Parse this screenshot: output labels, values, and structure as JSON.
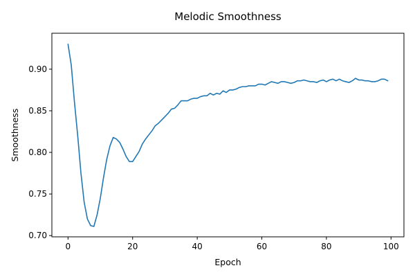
{
  "chart_data": {
    "type": "line",
    "title": "Melodic Smoothness",
    "xlabel": "Epoch",
    "ylabel": "Smoothness",
    "xlim": [
      -5,
      104
    ],
    "ylim": [
      0.6985,
      0.9432
    ],
    "xticks": [
      0,
      20,
      40,
      60,
      80,
      100
    ],
    "xtick_labels": [
      "0",
      "20",
      "40",
      "60",
      "80",
      "100"
    ],
    "yticks": [
      0.7,
      0.75,
      0.8,
      0.85,
      0.9
    ],
    "ytick_labels": [
      "0.70",
      "0.75",
      "0.80",
      "0.85",
      "0.90"
    ],
    "grid": false,
    "legend": false,
    "series": [
      {
        "color": "#1f77b4",
        "x": [
          0,
          1,
          2,
          3,
          4,
          5,
          6,
          7,
          8,
          9,
          10,
          11,
          12,
          13,
          14,
          15,
          16,
          17,
          18,
          19,
          20,
          21,
          22,
          23,
          24,
          25,
          26,
          27,
          28,
          29,
          30,
          31,
          32,
          33,
          34,
          35,
          36,
          37,
          38,
          39,
          40,
          41,
          42,
          43,
          44,
          45,
          46,
          47,
          48,
          49,
          50,
          51,
          52,
          53,
          54,
          55,
          56,
          57,
          58,
          59,
          60,
          61,
          62,
          63,
          64,
          65,
          66,
          67,
          68,
          69,
          70,
          71,
          72,
          73,
          74,
          75,
          76,
          77,
          78,
          79,
          80,
          81,
          82,
          83,
          84,
          85,
          86,
          87,
          88,
          89,
          90,
          91,
          92,
          93,
          94,
          95,
          96,
          97,
          98,
          99
        ],
        "values": [
          0.93,
          0.905,
          0.86,
          0.82,
          0.775,
          0.74,
          0.72,
          0.712,
          0.711,
          0.725,
          0.745,
          0.77,
          0.792,
          0.808,
          0.818,
          0.816,
          0.812,
          0.804,
          0.795,
          0.789,
          0.789,
          0.795,
          0.801,
          0.81,
          0.816,
          0.821,
          0.826,
          0.832,
          0.835,
          0.839,
          0.843,
          0.847,
          0.852,
          0.853,
          0.857,
          0.862,
          0.862,
          0.862,
          0.864,
          0.865,
          0.865,
          0.867,
          0.868,
          0.868,
          0.871,
          0.869,
          0.871,
          0.87,
          0.874,
          0.872,
          0.875,
          0.875,
          0.876,
          0.878,
          0.879,
          0.879,
          0.88,
          0.88,
          0.88,
          0.882,
          0.882,
          0.881,
          0.883,
          0.885,
          0.884,
          0.883,
          0.885,
          0.885,
          0.884,
          0.883,
          0.884,
          0.886,
          0.886,
          0.887,
          0.886,
          0.885,
          0.885,
          0.884,
          0.886,
          0.887,
          0.885,
          0.887,
          0.888,
          0.886,
          0.888,
          0.886,
          0.885,
          0.884,
          0.886,
          0.889,
          0.887,
          0.887,
          0.886,
          0.886,
          0.885,
          0.885,
          0.886,
          0.888,
          0.888,
          0.886
        ]
      }
    ]
  }
}
